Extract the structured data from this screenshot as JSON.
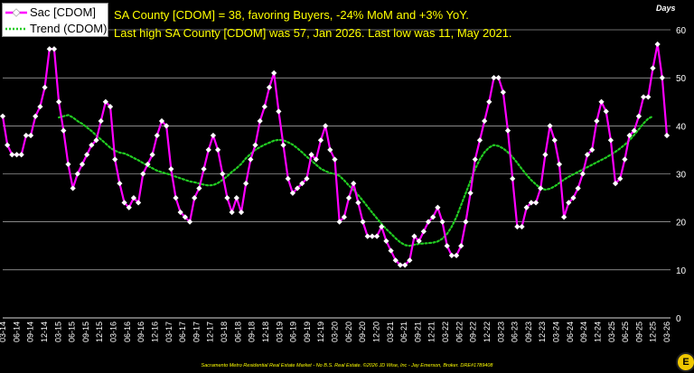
{
  "chart_data": {
    "type": "line",
    "units_label": "Days",
    "headline_1": "SA County [CDOM] = 38, favoring Buyers, -24% MoM and +3% YoY.",
    "headline_2": "Last high SA County [CDOM] was 57, Jan 2026. Last low was 11, May 2021.",
    "footer": "Sacramento Metro Residential Real Estate Market - No B.S. Real Estate. ©2026 JD Wise, Inc - Jay Emerson, Broker. DRE#1789408",
    "ylim": [
      0,
      60
    ],
    "yticks": [
      "0",
      "10",
      "20",
      "30",
      "40",
      "50",
      "60"
    ],
    "grid": true,
    "legend_position": "top-left",
    "colors": {
      "series_actual": "#ff00ff",
      "series_trend": "#22cc22",
      "headline": "#ffff00",
      "background": "#000000",
      "grid": "#ffffff"
    },
    "xticks": [
      "03-14",
      "06-14",
      "09-14",
      "12-14",
      "03-15",
      "06-15",
      "09-15",
      "12-15",
      "03-16",
      "06-16",
      "09-16",
      "12-16",
      "03-17",
      "06-17",
      "09-17",
      "12-17",
      "03-18",
      "06-18",
      "09-18",
      "12-18",
      "03-19",
      "06-19",
      "09-19",
      "12-19",
      "03-20",
      "06-20",
      "09-20",
      "12-20",
      "03-21",
      "06-21",
      "09-21",
      "12-21",
      "03-22",
      "06-22",
      "09-22",
      "12-22",
      "03-23",
      "06-23",
      "09-23",
      "12-23",
      "03-24",
      "06-24",
      "09-24",
      "12-24",
      "03-25",
      "06-25",
      "09-25",
      "12-25",
      "03-26"
    ],
    "series": [
      {
        "name": "Sac [CDOM]",
        "style": "line-markers",
        "values": [
          42,
          36,
          34,
          34,
          34,
          38,
          38,
          42,
          44,
          48,
          56,
          56,
          45,
          39,
          32,
          27,
          30,
          32,
          34,
          36,
          37,
          41,
          45,
          44,
          33,
          28,
          24,
          23,
          25,
          24,
          30,
          32,
          34,
          38,
          41,
          40,
          31,
          25,
          22,
          21,
          20,
          25,
          27,
          31,
          35,
          38,
          35,
          30,
          25,
          22,
          25,
          22,
          28,
          33,
          36,
          41,
          44,
          48,
          51,
          43,
          36,
          29,
          26,
          27,
          28,
          29,
          34,
          33,
          37,
          40,
          35,
          33,
          20,
          21,
          25,
          28,
          24,
          20,
          17,
          17,
          17,
          19,
          16,
          14,
          12,
          11,
          11,
          12,
          17,
          16,
          18,
          20,
          21,
          23,
          20,
          15,
          13,
          13,
          15,
          20,
          26,
          33,
          37,
          41,
          45,
          50,
          50,
          47,
          39,
          29,
          19,
          19,
          23,
          24,
          24,
          27,
          34,
          40,
          37,
          32,
          21,
          24,
          25,
          27,
          30,
          34,
          35,
          41,
          45,
          43,
          37,
          28,
          29,
          33,
          38,
          39,
          42,
          46,
          46,
          52,
          57,
          50,
          38
        ]
      },
      {
        "name": "Trend (CDOM)",
        "style": "dotted",
        "values": [
          null,
          null,
          null,
          null,
          null,
          null,
          null,
          null,
          null,
          null,
          null,
          null,
          41.75,
          42.0,
          42.25,
          41.75,
          41.0,
          40.42,
          39.67,
          38.92,
          38.0,
          37.17,
          36.33,
          35.42,
          34.83,
          34.42,
          34.25,
          33.83,
          33.33,
          32.83,
          32.25,
          31.67,
          31.17,
          30.67,
          30.33,
          30.08,
          29.75,
          29.42,
          29.08,
          28.75,
          28.42,
          28.25,
          28.0,
          27.75,
          27.58,
          27.67,
          28.08,
          28.75,
          29.5,
          30.42,
          31.17,
          32.08,
          33.25,
          34.17,
          35.0,
          35.58,
          36.08,
          36.5,
          36.92,
          37.08,
          37.0,
          36.58,
          36.08,
          35.33,
          34.5,
          33.58,
          32.75,
          31.92,
          31.08,
          30.58,
          30.17,
          30.0,
          29.58,
          28.67,
          27.58,
          26.67,
          25.58,
          24.42,
          23.17,
          21.92,
          20.75,
          19.58,
          18.5,
          17.58,
          16.58,
          15.75,
          15.17,
          15.0,
          15.25,
          15.42,
          15.5,
          15.58,
          15.67,
          15.92,
          16.5,
          17.5,
          19.0,
          21.0,
          23.5,
          26.0,
          28.5,
          31.0,
          33.0,
          34.5,
          35.5,
          36.0,
          35.8,
          35.3,
          34.5,
          33.5,
          32.3,
          31.0,
          29.8,
          28.7,
          27.8,
          27.0,
          26.7,
          26.9,
          27.4,
          28.1,
          28.8,
          29.4,
          29.9,
          30.4,
          30.9,
          31.4,
          31.9,
          32.4,
          32.9,
          33.4,
          34.0,
          34.6,
          35.3,
          36.1,
          37.0,
          38.1,
          39.3,
          40.5,
          41.5,
          42.0
        ]
      }
    ]
  }
}
